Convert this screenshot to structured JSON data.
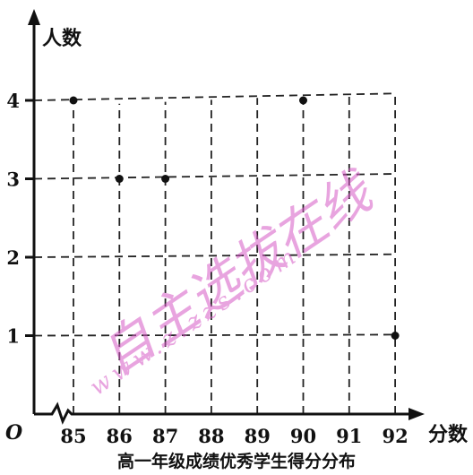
{
  "chart_data": {
    "type": "scatter",
    "title": "",
    "caption": "高一年级成绩优秀学生得分分布",
    "xlabel": "分数",
    "ylabel": "人数",
    "origin_label": "O",
    "x_ticks": [
      85,
      86,
      87,
      88,
      89,
      90,
      91,
      92
    ],
    "y_ticks": [
      1,
      2,
      3,
      4
    ],
    "x_axis_break": true,
    "grid": "dashed",
    "points": [
      {
        "x": 85,
        "y": 4
      },
      {
        "x": 86,
        "y": 3
      },
      {
        "x": 87,
        "y": 3
      },
      {
        "x": 90,
        "y": 4
      },
      {
        "x": 92,
        "y": 1
      }
    ]
  },
  "watermark": {
    "text": "自主选拔在线",
    "url": "www.zizzs.com",
    "color": "#d65ac6"
  }
}
